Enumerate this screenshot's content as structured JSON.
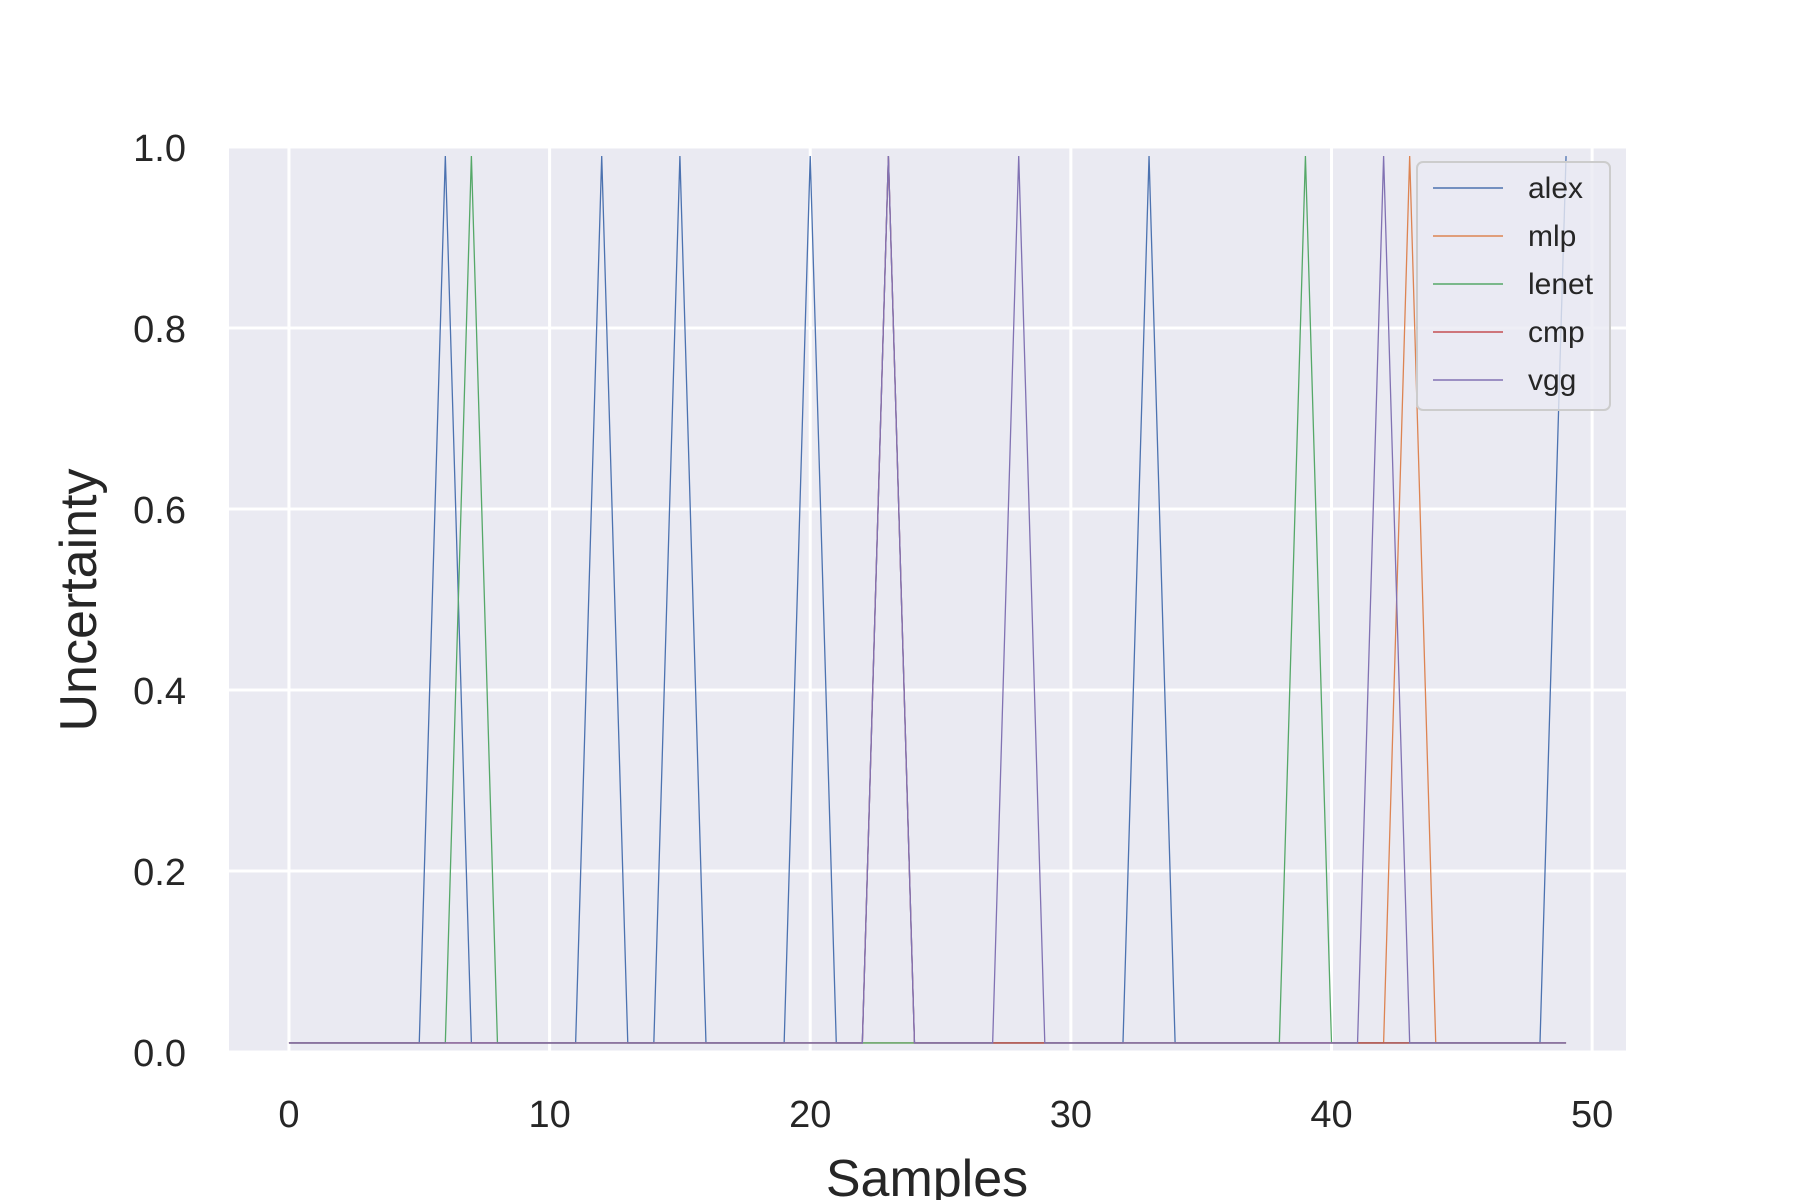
{
  "chart_data": {
    "type": "line",
    "title": "",
    "xlabel": "Samples",
    "ylabel": "Uncertainty",
    "xlim": [
      -2.3,
      51.3
    ],
    "ylim": [
      0.0,
      1.0
    ],
    "xticks": [
      0,
      10,
      20,
      30,
      40,
      50
    ],
    "yticks": [
      0.0,
      0.2,
      0.4,
      0.6,
      0.8,
      1.0
    ],
    "xtick_labels": [
      "0",
      "10",
      "20",
      "30",
      "40",
      "50"
    ],
    "ytick_labels": [
      "0.0",
      "0.2",
      "0.4",
      "0.6",
      "0.8",
      "1.0"
    ],
    "grid": true,
    "legend_position": "top-right",
    "baseline": 0.01,
    "peak": 0.99,
    "x_start": 0,
    "x_end": 49,
    "series": [
      {
        "name": "alex",
        "color": "#4c72b0",
        "spikes": [
          6,
          12,
          15,
          20,
          23,
          33,
          49
        ]
      },
      {
        "name": "mlp",
        "color": "#dd8452",
        "spikes": [
          43
        ]
      },
      {
        "name": "lenet",
        "color": "#55a868",
        "spikes": [
          7,
          39
        ]
      },
      {
        "name": "cmp",
        "color": "#c44e52",
        "spikes": [
          23
        ]
      },
      {
        "name": "vgg",
        "color": "#8172b3",
        "spikes": [
          23,
          28,
          42
        ]
      }
    ]
  }
}
